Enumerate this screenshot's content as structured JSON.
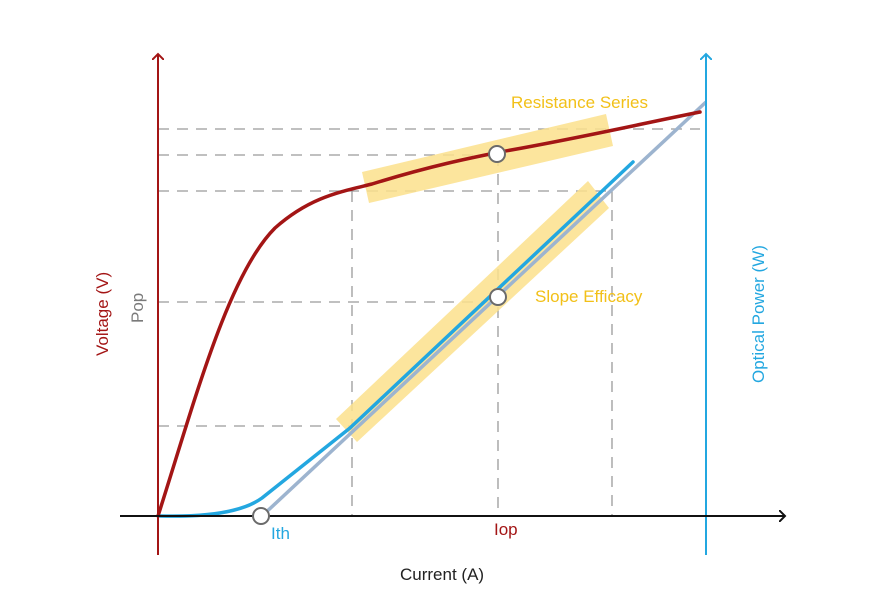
{
  "labels": {
    "x_axis": "Current (A)",
    "voltage_axis": "Voltage (V)",
    "pop_axis": "Pop",
    "optical_axis": "Optical Power (W)",
    "ith": "Ith",
    "iop": "Iop",
    "resistance_series": "Resistance Series",
    "slope_efficacy": "Slope Efficacy"
  },
  "colors": {
    "voltage": "#a31515",
    "optical_power": "#23a7e0",
    "fit_line": "#9db4cf",
    "highlight": "#fbe08c",
    "axis": "#111111",
    "guides": "#9a9a9a",
    "annotation": "#f2c018"
  }
}
